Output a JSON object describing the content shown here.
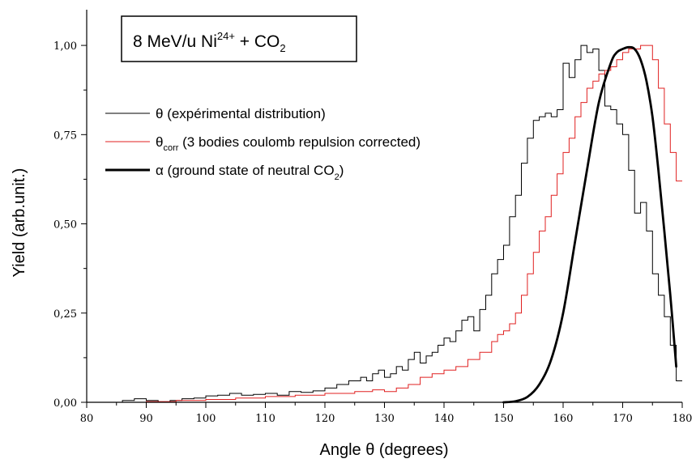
{
  "chart_data": {
    "type": "line",
    "title": {
      "prefix": "8 MeV/u Ni",
      "superscript": "24+",
      "middle": " + CO",
      "subscript": "2"
    },
    "xlabel": "Angle θ (degrees)",
    "ylabel": "Yield (arb.unit.)",
    "xlim": [
      80,
      180
    ],
    "ylim": [
      0,
      1.1
    ],
    "xticks": [
      80,
      90,
      100,
      110,
      120,
      130,
      140,
      150,
      160,
      170,
      180
    ],
    "yticks": [
      {
        "value": 0,
        "label": "0,00"
      },
      {
        "value": 0.25,
        "label": "0,25"
      },
      {
        "value": 0.5,
        "label": "0,50"
      },
      {
        "value": 0.75,
        "label": "0,75"
      },
      {
        "value": 1.0,
        "label": "1,00"
      }
    ],
    "legend_position": "top-left",
    "series": [
      {
        "name": "θ (expérimental distribution)",
        "color": "#000000",
        "style": "step",
        "x": [
          80,
          82,
          84,
          86,
          88,
          90,
          92,
          94,
          96,
          98,
          100,
          102,
          104,
          106,
          108,
          110,
          112,
          114,
          116,
          118,
          120,
          122,
          124,
          126,
          127,
          128,
          129,
          130,
          131,
          132,
          133,
          134,
          135,
          136,
          137,
          138,
          139,
          140,
          141,
          142,
          143,
          144,
          145,
          146,
          147,
          148,
          149,
          150,
          151,
          152,
          153,
          154,
          155,
          156,
          157,
          158,
          159,
          160,
          161,
          162,
          163,
          164,
          165,
          166,
          167,
          168,
          169,
          170,
          171,
          172,
          173,
          174,
          175,
          176,
          177,
          178,
          179
        ],
        "y": [
          0.0,
          0.0,
          0.0,
          0.005,
          0.01,
          0.005,
          0.0,
          0.005,
          0.01,
          0.012,
          0.018,
          0.02,
          0.025,
          0.02,
          0.022,
          0.025,
          0.02,
          0.03,
          0.028,
          0.032,
          0.04,
          0.05,
          0.06,
          0.07,
          0.06,
          0.08,
          0.09,
          0.07,
          0.08,
          0.1,
          0.09,
          0.12,
          0.14,
          0.11,
          0.13,
          0.14,
          0.16,
          0.18,
          0.17,
          0.2,
          0.23,
          0.24,
          0.2,
          0.26,
          0.3,
          0.36,
          0.4,
          0.44,
          0.52,
          0.58,
          0.67,
          0.74,
          0.79,
          0.8,
          0.81,
          0.8,
          0.82,
          0.95,
          0.91,
          0.96,
          1.0,
          0.98,
          0.99,
          0.93,
          0.83,
          0.82,
          0.78,
          0.75,
          0.65,
          0.53,
          0.56,
          0.48,
          0.36,
          0.3,
          0.24,
          0.16,
          0.06
        ]
      },
      {
        "name": "θcorr (3 bodies coulomb repulsion corrected)",
        "color": "#e02020",
        "style": "step",
        "x": [
          80,
          85,
          90,
          95,
          100,
          105,
          110,
          115,
          120,
          125,
          128,
          130,
          132,
          134,
          136,
          138,
          140,
          142,
          144,
          146,
          148,
          149,
          150,
          151,
          152,
          153,
          154,
          155,
          156,
          157,
          158,
          159,
          160,
          161,
          162,
          163,
          164,
          165,
          166,
          167,
          168,
          169,
          170,
          171,
          172,
          173,
          174,
          175,
          176,
          177,
          178,
          179
        ],
        "y": [
          0.0,
          0.0,
          0.002,
          0.005,
          0.008,
          0.012,
          0.016,
          0.02,
          0.025,
          0.03,
          0.035,
          0.03,
          0.04,
          0.05,
          0.07,
          0.08,
          0.09,
          0.1,
          0.12,
          0.14,
          0.17,
          0.19,
          0.2,
          0.22,
          0.25,
          0.3,
          0.36,
          0.42,
          0.48,
          0.52,
          0.58,
          0.64,
          0.7,
          0.74,
          0.8,
          0.84,
          0.88,
          0.9,
          0.92,
          0.93,
          0.94,
          0.96,
          0.98,
          0.99,
          0.99,
          1.0,
          1.0,
          0.96,
          0.88,
          0.78,
          0.7,
          0.62
        ]
      },
      {
        "name": "α (ground state of neutral CO2)",
        "color": "#000000",
        "style": "smooth",
        "x": [
          150,
          152,
          154,
          156,
          158,
          160,
          162,
          164,
          166,
          168,
          169,
          170,
          171,
          172,
          173,
          174,
          175,
          176,
          177,
          178,
          179
        ],
        "y": [
          0.0,
          0.003,
          0.015,
          0.05,
          0.12,
          0.25,
          0.45,
          0.65,
          0.84,
          0.95,
          0.98,
          0.99,
          0.995,
          0.99,
          0.96,
          0.9,
          0.8,
          0.65,
          0.48,
          0.3,
          0.1
        ]
      }
    ],
    "legend": [
      {
        "symbol": "θ",
        "subscript": "",
        "rest": " (expérimental distribution)"
      },
      {
        "symbol": "θ",
        "subscript": "corr",
        "rest": " (3 bodies coulomb repulsion corrected)"
      },
      {
        "symbol": "α",
        "subscript": "",
        "rest": " (ground state of neutral CO",
        "tail_subscript": "2",
        "tail": ")"
      }
    ]
  }
}
